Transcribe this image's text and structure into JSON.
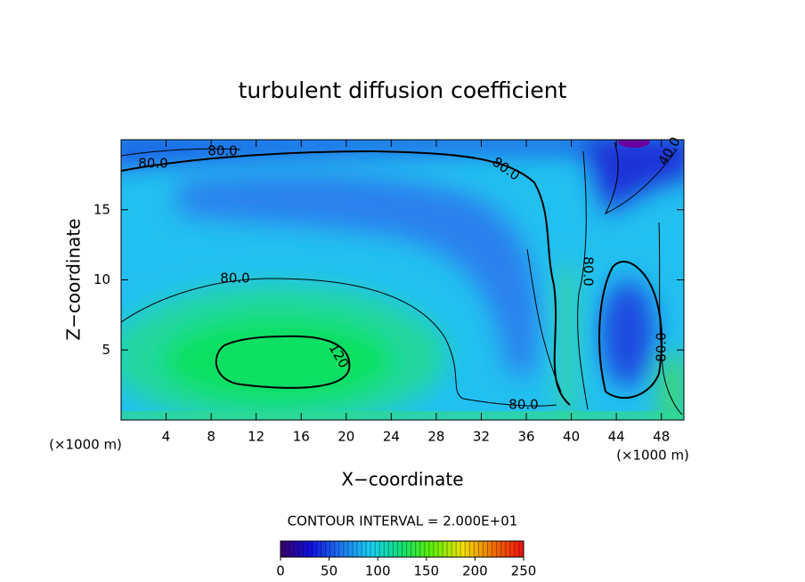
{
  "chart_data": {
    "type": "contour",
    "title": "turbulent diffusion coefficient",
    "x_label": "X−coordinate",
    "y_label": "Z−coordinate",
    "x_unit": "(×1000 m)",
    "xlim": [
      0,
      50
    ],
    "xticks": [
      4,
      8,
      12,
      16,
      20,
      24,
      28,
      32,
      36,
      40,
      44,
      48
    ],
    "ylim": [
      0,
      20
    ],
    "yticks": [
      5,
      10,
      15
    ],
    "contour_interval_text": "CONTOUR INTERVAL = 2.000E+01",
    "contour_labels": [
      {
        "value": 80,
        "label": "80.0"
      },
      {
        "value": 80,
        "label": "80.0"
      },
      {
        "value": 80,
        "label": "80.0"
      },
      {
        "value": 80,
        "label": "80.0"
      },
      {
        "value": 80,
        "label": "80.0"
      },
      {
        "value": 80,
        "label": "80.0"
      },
      {
        "value": 80,
        "label": "80.0"
      },
      {
        "value": 120,
        "label": "120"
      },
      {
        "value": 40,
        "label": "40.0"
      }
    ],
    "clim": [
      0,
      250
    ],
    "cticks": [
      0,
      50,
      100,
      150,
      200,
      250
    ],
    "colormap": [
      "#3a006a",
      "#1010e0",
      "#1e78f0",
      "#18d0f0",
      "#10e070",
      "#60f000",
      "#f0e000",
      "#f07000",
      "#f01010"
    ]
  }
}
